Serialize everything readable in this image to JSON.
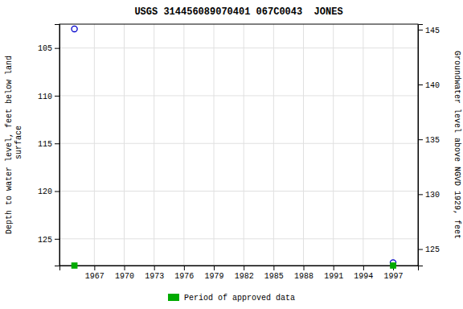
{
  "chart_data": {
    "type": "scatter",
    "title": "USGS 314456089070401 067C0043  JONES",
    "ylabel": "Depth to water level, feet below land\n surface",
    "y2label": "Groundwater level above NGVD 1929, feet",
    "x": [
      1965.0,
      1997.0
    ],
    "series": [
      {
        "color": "#0000cc",
        "marker": "circle",
        "values": [
          103.0,
          127.5
        ]
      },
      {
        "name": "Period of approved data",
        "color": "#00aa00",
        "marker": "square",
        "values": [
          127.8,
          127.8
        ]
      }
    ],
    "xlim": [
      1963.5,
      1999.5
    ],
    "xticks": [
      1967,
      1970,
      1973,
      1976,
      1979,
      1982,
      1985,
      1988,
      1991,
      1994,
      1997
    ],
    "ylim": [
      127.8,
      102.5
    ],
    "yticks": [
      105,
      110,
      115,
      120,
      125
    ],
    "y2lim": [
      123.5,
      145.5
    ],
    "y2ticks": [
      125,
      130,
      135,
      140,
      145
    ],
    "grid": true,
    "legend": "bottom"
  }
}
